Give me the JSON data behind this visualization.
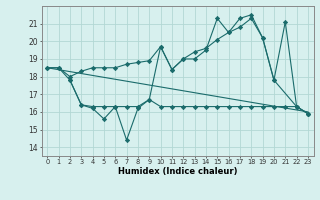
{
  "xlabel": "Humidex (Indice chaleur)",
  "bg_color": "#d7f0ee",
  "line_color": "#1a6b6b",
  "grid_color": "#b2d8d4",
  "x_ticks": [
    0,
    1,
    2,
    3,
    4,
    5,
    6,
    7,
    8,
    9,
    10,
    11,
    12,
    13,
    14,
    15,
    16,
    17,
    18,
    19,
    20,
    21,
    22,
    23
  ],
  "y_ticks": [
    14,
    15,
    16,
    17,
    18,
    19,
    20,
    21
  ],
  "xlim": [
    -0.5,
    23.5
  ],
  "ylim": [
    13.5,
    22.0
  ],
  "series_upper_x": [
    0,
    1,
    2,
    3,
    4,
    5,
    6,
    7,
    8,
    9,
    10,
    11,
    12,
    13,
    14,
    15,
    16,
    17,
    18,
    19,
    20,
    21,
    22,
    23
  ],
  "series_upper_y": [
    18.5,
    18.5,
    18.0,
    18.3,
    18.5,
    18.5,
    18.5,
    18.7,
    18.8,
    18.9,
    19.7,
    18.4,
    19.0,
    19.4,
    19.6,
    20.1,
    20.5,
    20.8,
    21.3,
    20.2,
    17.8,
    21.1,
    16.3,
    15.9
  ],
  "series_zigzag_x": [
    0,
    1,
    2,
    3,
    4,
    5,
    6,
    7,
    8,
    9,
    10,
    11,
    12,
    13,
    14,
    15,
    16,
    17,
    18,
    19,
    20,
    22,
    23
  ],
  "series_zigzag_y": [
    18.5,
    18.5,
    17.8,
    16.4,
    16.3,
    16.3,
    16.3,
    16.3,
    16.3,
    16.7,
    19.7,
    18.4,
    19.0,
    19.0,
    19.5,
    21.3,
    20.5,
    21.3,
    21.5,
    20.2,
    17.8,
    16.3,
    15.9
  ],
  "series_lower_x": [
    2,
    3,
    4,
    5,
    6,
    7,
    8,
    9,
    10,
    11,
    12,
    13,
    14,
    15,
    16,
    17,
    18,
    19,
    20,
    21,
    22,
    23
  ],
  "series_lower_y": [
    17.8,
    16.4,
    16.2,
    15.6,
    16.3,
    14.4,
    16.2,
    16.7,
    16.3,
    16.3,
    16.3,
    16.3,
    16.3,
    16.3,
    16.3,
    16.3,
    16.3,
    16.3,
    16.3,
    16.3,
    16.3,
    15.9
  ]
}
